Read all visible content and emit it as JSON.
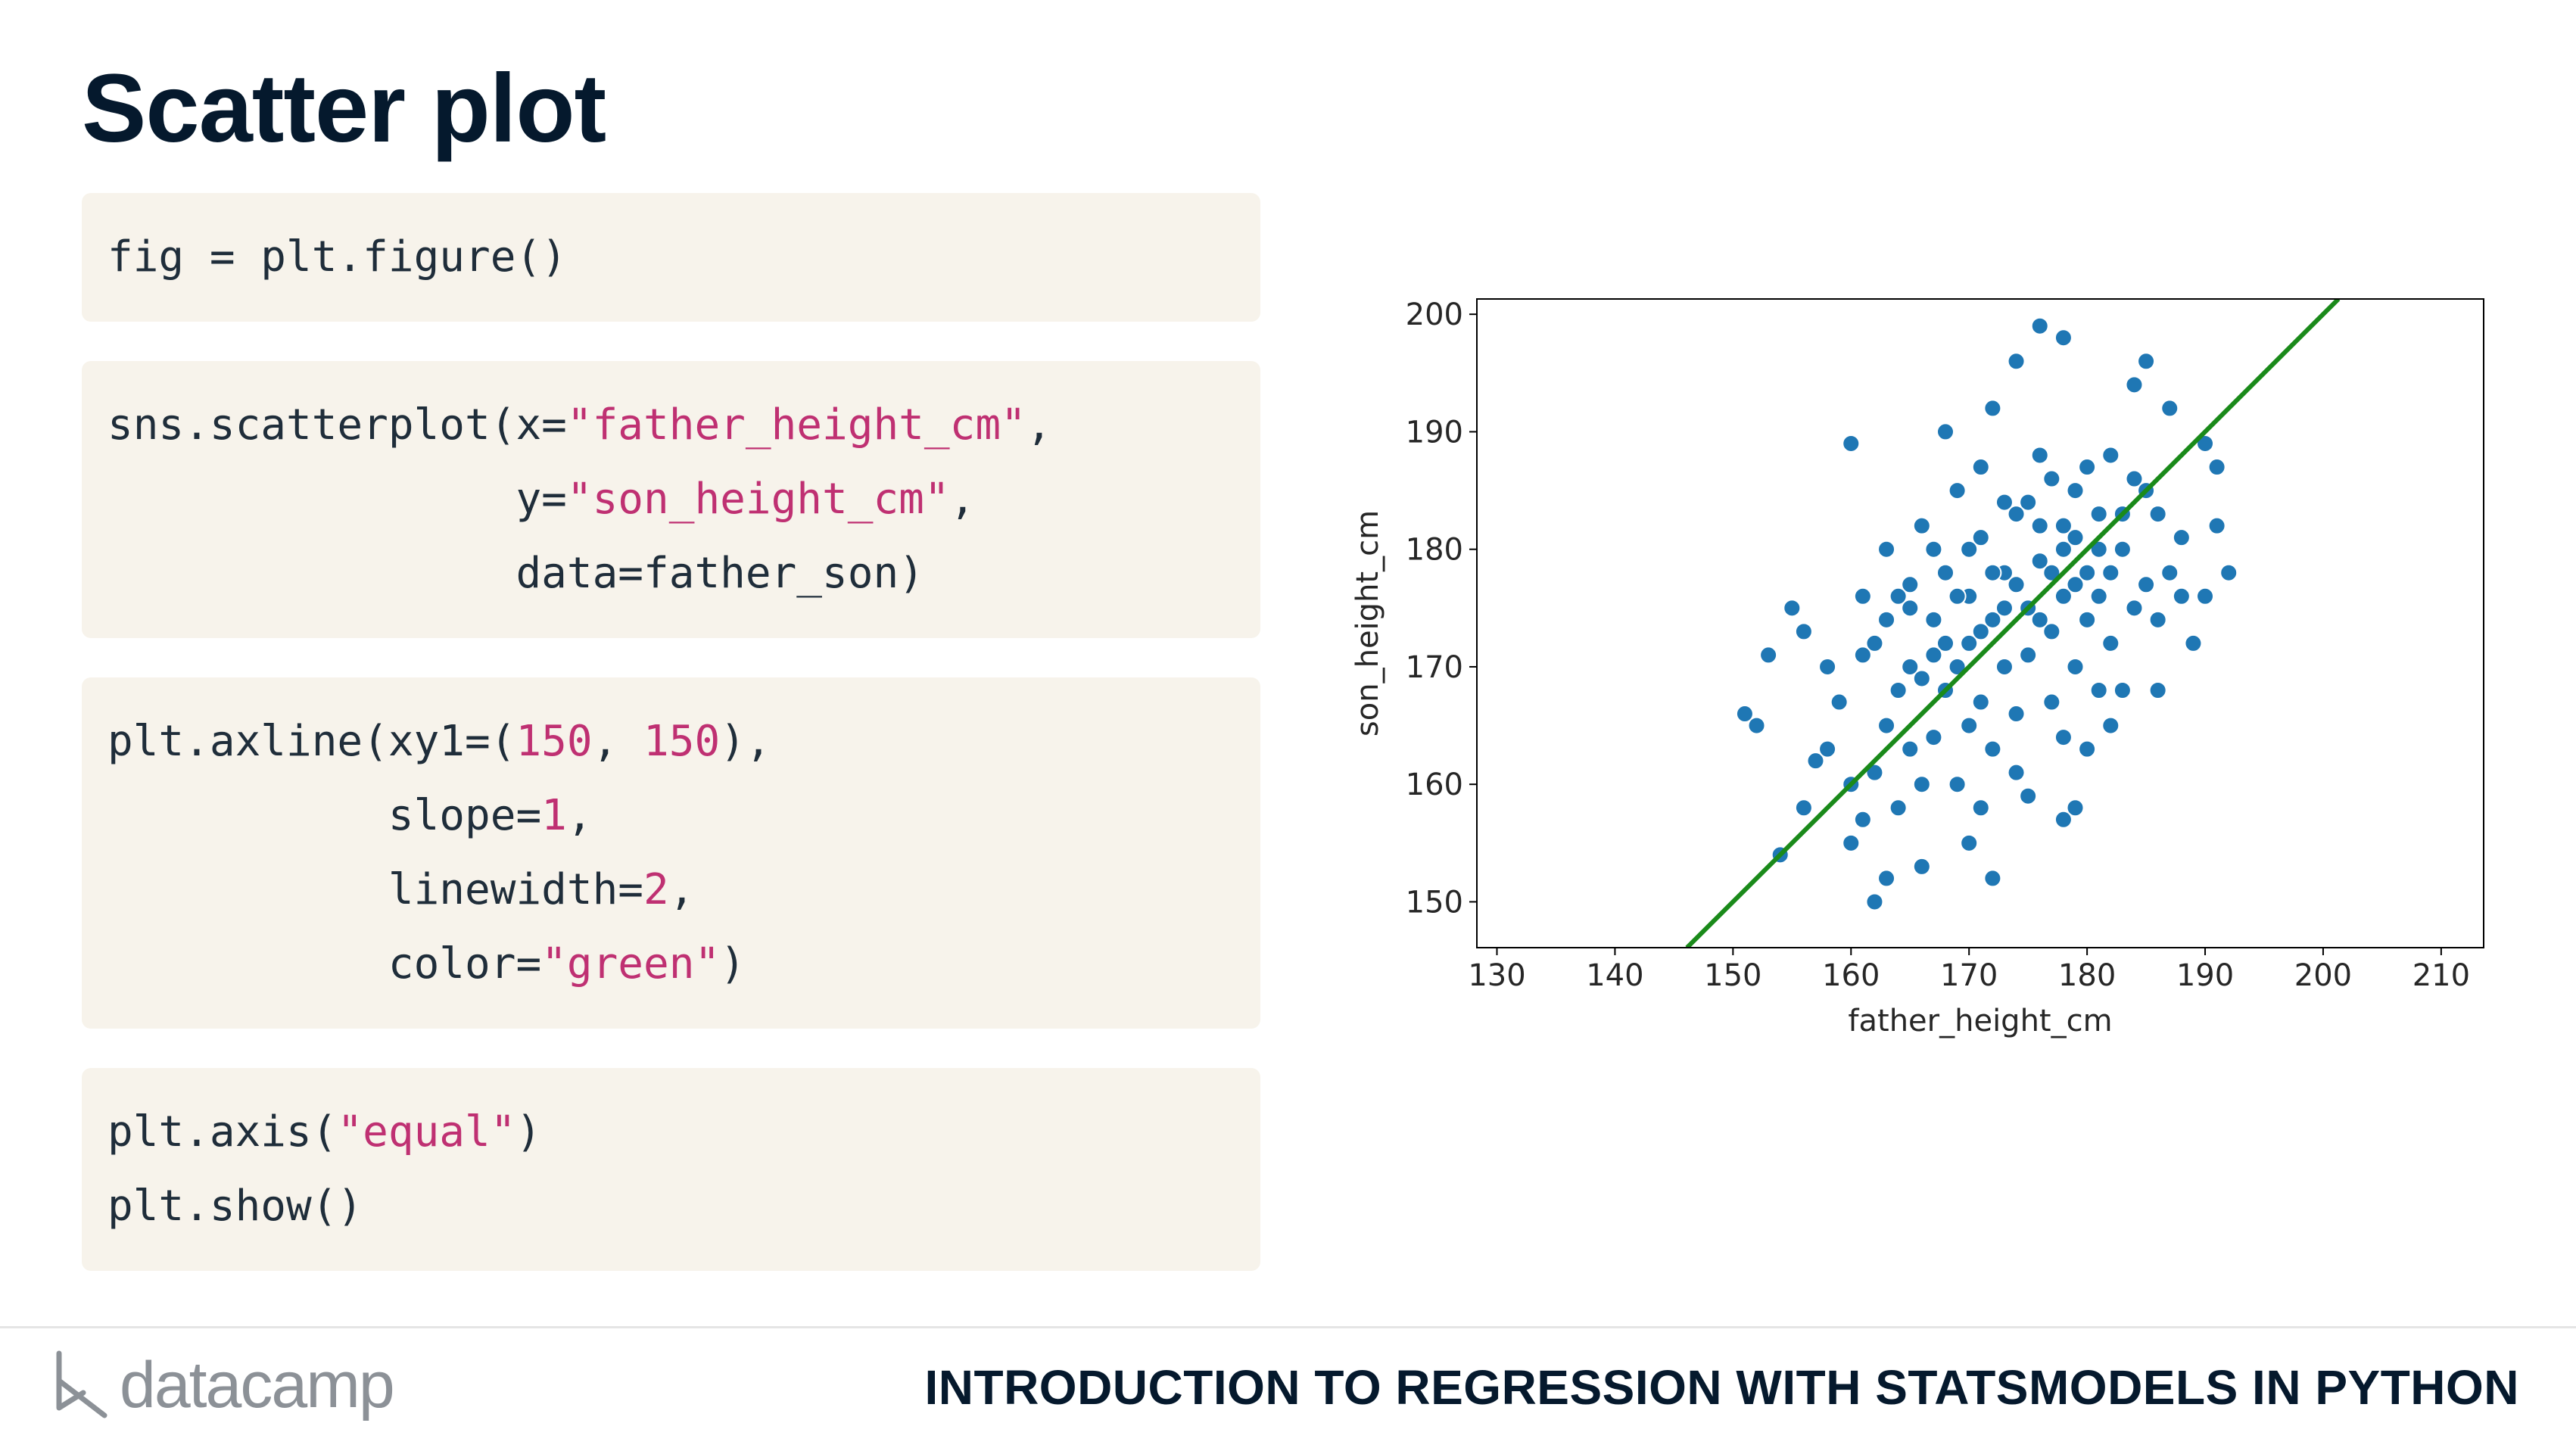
{
  "title": "Scatter plot",
  "code_blocks": [
    [
      [
        {
          "text": "fig = plt.figure()",
          "kind": "plain"
        }
      ]
    ],
    [
      [
        {
          "text": "sns.scatterplot(x=",
          "kind": "plain"
        },
        {
          "text": "\"father_height_cm\"",
          "kind": "string"
        },
        {
          "text": ",",
          "kind": "plain"
        }
      ],
      [
        {
          "text": "                y=",
          "kind": "plain"
        },
        {
          "text": "\"son_height_cm\"",
          "kind": "string"
        },
        {
          "text": ",",
          "kind": "plain"
        }
      ],
      [
        {
          "text": "                data=father_son)",
          "kind": "plain"
        }
      ]
    ],
    [
      [
        {
          "text": "plt.axline(xy1=(",
          "kind": "plain"
        },
        {
          "text": "150",
          "kind": "string"
        },
        {
          "text": ", ",
          "kind": "plain"
        },
        {
          "text": "150",
          "kind": "string"
        },
        {
          "text": "),",
          "kind": "plain"
        }
      ],
      [
        {
          "text": "           slope=",
          "kind": "plain"
        },
        {
          "text": "1",
          "kind": "string"
        },
        {
          "text": ",",
          "kind": "plain"
        }
      ],
      [
        {
          "text": "           linewidth=",
          "kind": "plain"
        },
        {
          "text": "2",
          "kind": "string"
        },
        {
          "text": ",",
          "kind": "plain"
        }
      ],
      [
        {
          "text": "           color=",
          "kind": "plain"
        },
        {
          "text": "\"green\"",
          "kind": "string"
        },
        {
          "text": ")",
          "kind": "plain"
        }
      ]
    ],
    [
      [
        {
          "text": "plt.axis(",
          "kind": "plain"
        },
        {
          "text": "\"equal\"",
          "kind": "string"
        },
        {
          "text": ")",
          "kind": "plain"
        }
      ],
      [
        {
          "text": "plt.show()",
          "kind": "plain"
        }
      ]
    ]
  ],
  "chart_data": {
    "type": "scatter",
    "x_label": "father_height_cm",
    "y_label": "son_height_cm",
    "xlim": [
      128.3,
      213.6
    ],
    "ylim": [
      146.1,
      201.3
    ],
    "xticks": [
      130,
      140,
      150,
      160,
      170,
      180,
      190,
      200,
      210
    ],
    "yticks": [
      150,
      160,
      170,
      180,
      190,
      200
    ],
    "grid": false,
    "series": [
      {
        "type": "scatter",
        "color": "#1f77b4",
        "x": [
          151,
          152,
          153,
          154,
          155,
          156,
          157,
          158,
          159,
          160,
          160,
          161,
          161,
          162,
          162,
          163,
          163,
          164,
          164,
          165,
          165,
          166,
          166,
          167,
          167,
          168,
          168,
          168,
          169,
          169,
          170,
          170,
          170,
          171,
          171,
          172,
          172,
          172,
          173,
          173,
          174,
          174,
          174,
          175,
          175,
          175,
          176,
          176,
          176,
          177,
          177,
          178,
          178,
          178,
          179,
          179,
          179,
          180,
          180,
          180,
          181,
          181,
          182,
          182,
          183,
          183,
          184,
          184,
          185,
          185,
          186,
          186,
          187,
          187,
          188,
          189,
          190,
          190,
          191,
          191,
          192,
          161,
          163,
          165,
          166,
          167,
          169,
          170,
          171,
          173,
          174,
          176,
          177,
          178,
          180,
          181,
          182,
          184,
          185,
          186,
          168,
          170,
          172,
          174,
          176,
          178,
          179,
          175,
          173,
          171,
          169,
          167,
          165,
          177,
          179,
          181,
          183,
          164,
          162,
          158,
          156,
          166,
          171,
          178,
          182,
          188,
          160,
          163,
          172
        ],
        "values": [
          166,
          165,
          171,
          154,
          175,
          158,
          162,
          170,
          167,
          189,
          160,
          176,
          157,
          150,
          172,
          165,
          180,
          158,
          168,
          177,
          170,
          153,
          182,
          164,
          174,
          190,
          178,
          168,
          160,
          185,
          172,
          176,
          155,
          181,
          167,
          192,
          174,
          163,
          178,
          170,
          196,
          183,
          166,
          175,
          171,
          159,
          199,
          188,
          179,
          173,
          167,
          182,
          176,
          198,
          185,
          170,
          158,
          178,
          174,
          163,
          183,
          176,
          188,
          172,
          180,
          168,
          186,
          194,
          177,
          196,
          183,
          174,
          192,
          178,
          181,
          172,
          189,
          176,
          182,
          187,
          178,
          171,
          174,
          163,
          169,
          180,
          176,
          165,
          187,
          184,
          161,
          182,
          186,
          164,
          187,
          168,
          178,
          175,
          185,
          168,
          172,
          180,
          178,
          177,
          174,
          180,
          177,
          184,
          175,
          173,
          170,
          171,
          175,
          178,
          181,
          180,
          183,
          176,
          161,
          163,
          173,
          160,
          158,
          157,
          165,
          176,
          155,
          152,
          152
        ]
      },
      {
        "type": "line",
        "color": "#1a8a1a",
        "x": [
          146.1,
          201.3
        ],
        "values": [
          146.1,
          201.3
        ]
      }
    ]
  },
  "footer": {
    "logo_text": "datacamp",
    "course": "INTRODUCTION TO REGRESSION WITH STATSMODELS IN PYTHON"
  }
}
